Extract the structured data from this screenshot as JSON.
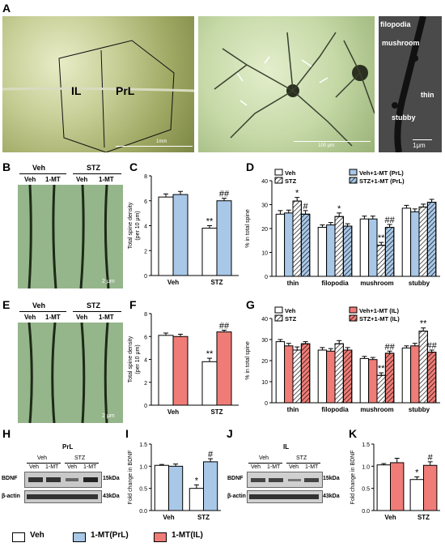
{
  "panels": {
    "A": "A",
    "B": "B",
    "C": "C",
    "D": "D",
    "E": "E",
    "F": "F",
    "G": "G",
    "H": "H",
    "I": "I",
    "J": "J",
    "K": "K"
  },
  "panel_a": {
    "regions": [
      "IL",
      "PrL"
    ],
    "scale_1": "1mm",
    "scale_2": "100 μm",
    "scale_3": "1μm",
    "spine_types": [
      "filopodia",
      "mushroom",
      "thin",
      "stubby"
    ]
  },
  "dendrite_panels": {
    "groups": [
      "Veh",
      "STZ"
    ],
    "treatments": [
      "Veh",
      "1-MT",
      "Veh",
      "1-MT"
    ],
    "scale": "2 μm"
  },
  "western_h": {
    "region": "PrL",
    "groups": [
      "Veh",
      "STZ"
    ],
    "lanes": [
      "Veh",
      "1-MT",
      "Veh",
      "1-MT"
    ],
    "proteins": [
      "BDNF",
      "β-actin"
    ],
    "sizes": [
      "15kDa",
      "43kDa"
    ]
  },
  "western_j": {
    "region": "IL",
    "groups": [
      "Veh",
      "STZ"
    ],
    "lanes": [
      "Veh",
      "1-MT",
      "Veh",
      "1-MT"
    ],
    "proteins": [
      "BDNF",
      "β-actin"
    ],
    "sizes": [
      "15kDa",
      "43kDa"
    ]
  },
  "legend": {
    "items": [
      "Veh",
      "1-MT(PrL)",
      "1-MT(IL)"
    ],
    "colors": [
      "#ffffff",
      "#a9c8e8",
      "#f07c77"
    ]
  },
  "colors": {
    "prl": "#a9c8e8",
    "il": "#f07c77"
  },
  "chart_data": [
    {
      "id": "C",
      "type": "bar",
      "ylabel": "Total spine density\n(per 10 μm)",
      "ylim": [
        0,
        8
      ],
      "yticks": [
        0,
        2,
        4,
        6,
        8
      ],
      "categories": [
        "Veh",
        "STZ"
      ],
      "series": [
        {
          "values": [
            6.3,
            3.8
          ],
          "errors": [
            0.25,
            0.2
          ],
          "color": "#ffffff"
        },
        {
          "values": [
            6.5,
            6.0
          ],
          "errors": [
            0.25,
            0.2
          ],
          "color": "#a9c8e8"
        }
      ],
      "annotations": [
        {
          "cat": 1,
          "series": 0,
          "text": "**"
        },
        {
          "cat": 1,
          "series": 1,
          "text": "##"
        }
      ]
    },
    {
      "id": "D",
      "type": "bar",
      "ylabel": "% in total spine",
      "ylim": [
        0,
        40
      ],
      "yticks": [
        0,
        10,
        20,
        30,
        40
      ],
      "categories": [
        "thin",
        "filopodia",
        "mushroom",
        "stubby"
      ],
      "legend": [
        "Veh",
        "STZ",
        "Veh+1-MT (PrL)",
        "STZ+1-MT (PrL)"
      ],
      "series": [
        {
          "values": [
            26,
            20.5,
            24,
            28.5
          ],
          "errors": [
            1.5,
            1,
            1.2,
            1.2
          ],
          "color": "#ffffff",
          "hatch": false
        },
        {
          "values": [
            26.5,
            21.5,
            24,
            27
          ],
          "errors": [
            1.2,
            1,
            1.2,
            1.2
          ],
          "color": "#a9c8e8",
          "hatch": false
        },
        {
          "values": [
            31.5,
            25,
            13,
            29
          ],
          "errors": [
            1.5,
            1.5,
            1.2,
            1.2
          ],
          "color": "#ffffff",
          "hatch": true
        },
        {
          "values": [
            26,
            21,
            20.5,
            31
          ],
          "errors": [
            1.5,
            1,
            1.2,
            1.2
          ],
          "color": "#a9c8e8",
          "hatch": true
        }
      ],
      "annotations": [
        {
          "cat": 0,
          "series": 2,
          "text": "*"
        },
        {
          "cat": 0,
          "series": 3,
          "text": "#"
        },
        {
          "cat": 1,
          "series": 2,
          "text": "*"
        },
        {
          "cat": 2,
          "series": 2,
          "text": "**"
        },
        {
          "cat": 2,
          "series": 3,
          "text": "##"
        }
      ]
    },
    {
      "id": "F",
      "type": "bar",
      "ylabel": "Total spine density\n(per 10 μm)",
      "ylim": [
        0,
        8
      ],
      "yticks": [
        0,
        2,
        4,
        6,
        8
      ],
      "categories": [
        "Veh",
        "STZ"
      ],
      "series": [
        {
          "values": [
            6.1,
            3.8
          ],
          "errors": [
            0.2,
            0.3
          ],
          "color": "#ffffff"
        },
        {
          "values": [
            6.0,
            6.4
          ],
          "errors": [
            0.2,
            0.15
          ],
          "color": "#f07c77"
        }
      ],
      "annotations": [
        {
          "cat": 1,
          "series": 0,
          "text": "**"
        },
        {
          "cat": 1,
          "series": 1,
          "text": "##"
        }
      ]
    },
    {
      "id": "G",
      "type": "bar",
      "ylabel": "% in total spine",
      "ylim": [
        0,
        40
      ],
      "yticks": [
        0,
        10,
        20,
        30,
        40
      ],
      "categories": [
        "thin",
        "filopodia",
        "mushroom",
        "stubby"
      ],
      "legend": [
        "Veh",
        "STZ",
        "Veh+1-MT (IL)",
        "STZ+1-MT (IL)"
      ],
      "series": [
        {
          "values": [
            29,
            25,
            21,
            26
          ],
          "errors": [
            1,
            1.2,
            1,
            1
          ],
          "color": "#ffffff",
          "hatch": false
        },
        {
          "values": [
            27,
            24.5,
            20.5,
            27
          ],
          "errors": [
            1.2,
            1.2,
            1,
            1.2
          ],
          "color": "#f07c77",
          "hatch": false
        },
        {
          "values": [
            25,
            28,
            13,
            34
          ],
          "errors": [
            1.5,
            1.5,
            1.2,
            1.5
          ],
          "color": "#ffffff",
          "hatch": true
        },
        {
          "values": [
            28,
            25,
            23.5,
            24
          ],
          "errors": [
            1,
            1.2,
            1,
            1
          ],
          "color": "#f07c77",
          "hatch": true
        }
      ],
      "annotations": [
        {
          "cat": 2,
          "series": 2,
          "text": "**"
        },
        {
          "cat": 2,
          "series": 3,
          "text": "##"
        },
        {
          "cat": 3,
          "series": 2,
          "text": "**"
        },
        {
          "cat": 3,
          "series": 3,
          "text": "##"
        }
      ]
    },
    {
      "id": "I",
      "type": "bar",
      "ylabel": "Fold change in BDNF",
      "ylim": [
        0,
        1.5
      ],
      "yticks": [
        0.0,
        0.5,
        1.0,
        1.5
      ],
      "categories": [
        "Veh",
        "STZ"
      ],
      "series": [
        {
          "values": [
            1.02,
            0.5
          ],
          "errors": [
            0.02,
            0.08
          ],
          "color": "#ffffff"
        },
        {
          "values": [
            1.0,
            1.1
          ],
          "errors": [
            0.05,
            0.07
          ],
          "color": "#a9c8e8"
        }
      ],
      "annotations": [
        {
          "cat": 1,
          "series": 0,
          "text": "*"
        },
        {
          "cat": 1,
          "series": 1,
          "text": "#"
        }
      ]
    },
    {
      "id": "K",
      "type": "bar",
      "ylabel": "Fold change in BDNF",
      "ylim": [
        0,
        1.5
      ],
      "yticks": [
        0.0,
        0.5,
        1.0,
        1.5
      ],
      "categories": [
        "Veh",
        "STZ"
      ],
      "series": [
        {
          "values": [
            1.03,
            0.7
          ],
          "errors": [
            0.03,
            0.06
          ],
          "color": "#ffffff"
        },
        {
          "values": [
            1.08,
            1.02
          ],
          "errors": [
            0.1,
            0.08
          ],
          "color": "#f07c77"
        }
      ],
      "annotations": [
        {
          "cat": 1,
          "series": 0,
          "text": "*"
        },
        {
          "cat": 1,
          "series": 1,
          "text": "#"
        }
      ]
    }
  ]
}
